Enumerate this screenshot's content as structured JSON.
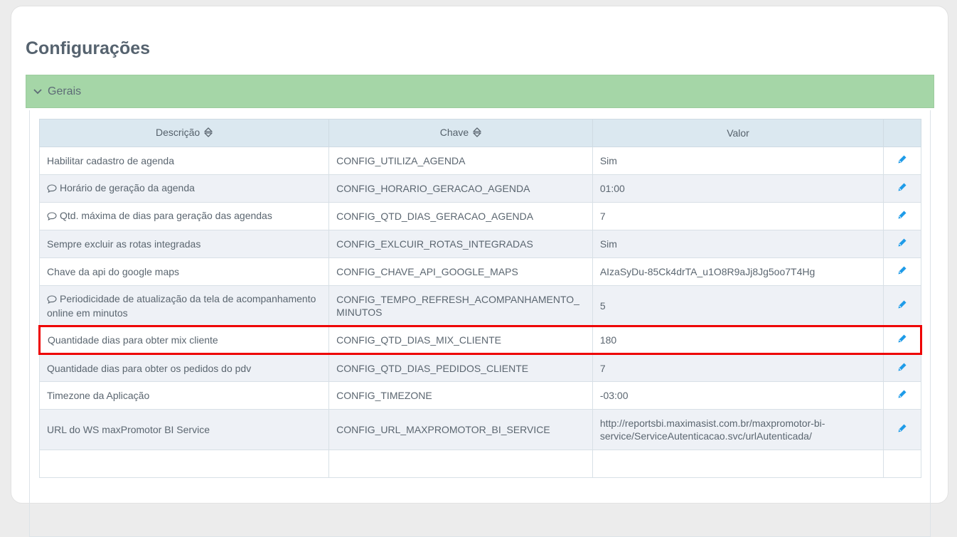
{
  "page": {
    "title": "Configurações"
  },
  "section": {
    "label": "Gerais",
    "expanded": true,
    "header_color": "#a5d6a7"
  },
  "table": {
    "columns": [
      {
        "label": "Descrição",
        "sortable": true
      },
      {
        "label": "Chave",
        "sortable": true
      },
      {
        "label": "Valor",
        "sortable": false
      },
      {
        "label": "",
        "sortable": false
      }
    ],
    "rows": [
      {
        "descricao": "Habilitar cadastro de agenda",
        "comment": false,
        "chave": "CONFIG_UTILIZA_AGENDA",
        "valor": "Sim"
      },
      {
        "descricao": "Horário de geração da agenda",
        "comment": true,
        "chave": "CONFIG_HORARIO_GERACAO_AGENDA",
        "valor": "01:00"
      },
      {
        "descricao": "Qtd. máxima de dias para geração das agendas",
        "comment": true,
        "chave": "CONFIG_QTD_DIAS_GERACAO_AGENDA",
        "valor": "7"
      },
      {
        "descricao": "Sempre excluir as rotas integradas",
        "comment": false,
        "chave": "CONFIG_EXLCUIR_ROTAS_INTEGRADAS",
        "valor": "Sim"
      },
      {
        "descricao": "Chave da api do google maps",
        "comment": false,
        "chave": "CONFIG_CHAVE_API_GOOGLE_MAPS",
        "valor": "AIzaSyDu-85Ck4drTA_u1O8R9aJj8Jg5oo7T4Hg"
      },
      {
        "descricao": "Periodicidade de atualização da tela de acompanhamento online em minutos",
        "comment": true,
        "chave": "CONFIG_TEMPO_REFRESH_ACOMPANHAMENTO_MINUTOS",
        "valor": "5"
      },
      {
        "descricao": "Quantidade dias para obter mix cliente",
        "comment": false,
        "chave": "CONFIG_QTD_DIAS_MIX_CLIENTE",
        "valor": "180",
        "highlighted": true
      },
      {
        "descricao": "Quantidade dias para obter os pedidos do pdv",
        "comment": false,
        "chave": "CONFIG_QTD_DIAS_PEDIDOS_CLIENTE",
        "valor": "7"
      },
      {
        "descricao": "Timezone da Aplicação",
        "comment": false,
        "chave": "CONFIG_TIMEZONE",
        "valor": "-03:00"
      },
      {
        "descricao": "URL do WS maxPromotor BI Service",
        "comment": false,
        "chave": "CONFIG_URL_MAXPROMOTOR_BI_SERVICE",
        "valor": "http://reportsbi.maximasist.com.br/maxpromotor-bi-service/ServiceAutenticacao.svc/urlAutenticada/"
      },
      {
        "descricao": "",
        "comment": false,
        "chave": "",
        "valor": ""
      }
    ]
  },
  "colors": {
    "highlight": "#ee0000",
    "edit_icon": "#1e9be8"
  }
}
